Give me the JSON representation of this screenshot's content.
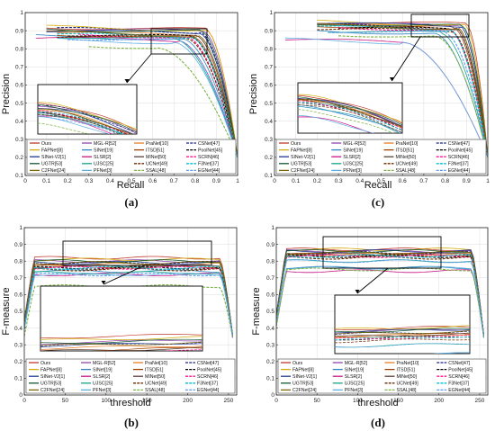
{
  "legend": [
    {
      "name": "Ours",
      "color": "#c0392b",
      "dash": "solid"
    },
    {
      "name": "MGL-R[52]",
      "color": "#8e44ad",
      "dash": "solid"
    },
    {
      "name": "PraNet[10]",
      "color": "#e67e22",
      "dash": "solid"
    },
    {
      "name": "CSNet[47]",
      "color": "#1a237e",
      "dash": "dash"
    },
    {
      "name": "FAPNet[8]",
      "color": "#d4ac0d",
      "dash": "solid"
    },
    {
      "name": "SINet[19]",
      "color": "#2e86c1",
      "dash": "solid"
    },
    {
      "name": "ITSD[51]",
      "color": "#a04000",
      "dash": "solid"
    },
    {
      "name": "PoolNet[45]",
      "color": "#000000",
      "dash": "dash"
    },
    {
      "name": "SINet-V2[1]",
      "color": "#1f3a93",
      "dash": "solid"
    },
    {
      "name": "SLSR[2]",
      "color": "#c71585",
      "dash": "solid"
    },
    {
      "name": "MINet[50]",
      "color": "#5d4037",
      "dash": "solid"
    },
    {
      "name": "SCRN[46]",
      "color": "#ff1493",
      "dash": "dash"
    },
    {
      "name": "UGTR[53]",
      "color": "#145a32",
      "dash": "solid"
    },
    {
      "name": "UJSC[25]",
      "color": "#17a589",
      "dash": "solid"
    },
    {
      "name": "UCNet[49]",
      "color": "#6e2c00",
      "dash": "dash"
    },
    {
      "name": "F3Net[37]",
      "color": "#00bcd4",
      "dash": "dash"
    },
    {
      "name": "C2FNet[24]",
      "color": "#7d6608",
      "dash": "solid"
    },
    {
      "name": "PFNet[3]",
      "color": "#5dade2",
      "dash": "solid"
    },
    {
      "name": "SSAL[48]",
      "color": "#7cb342",
      "dash": "dash"
    },
    {
      "name": "EGNet[44]",
      "color": "#5c9ded",
      "dash": "dash"
    }
  ],
  "chart_data": [
    {
      "type": "line",
      "panel_label": "(a)",
      "xlabel": "Recall",
      "ylabel": "Precision",
      "xlim": [
        0,
        1
      ],
      "ylim": [
        0.1,
        1
      ],
      "xticks": [
        0,
        0.1,
        0.2,
        0.3,
        0.4,
        0.5,
        0.6,
        0.7,
        0.8,
        0.9,
        1
      ],
      "yticks": [
        0.1,
        0.2,
        0.3,
        0.4,
        0.5,
        0.6,
        0.7,
        0.8,
        0.9,
        1
      ],
      "xtick_labels": [
        "0",
        "0.1",
        "0.2",
        "0.3",
        "0.4",
        "0.5",
        "0.6",
        "0.7",
        "0.8",
        "0.9",
        "1"
      ],
      "ytick_labels": [
        "0.1",
        "0.2",
        "0.3",
        "0.4",
        "0.5",
        "0.6",
        "0.7",
        "0.8",
        "0.9",
        "1"
      ],
      "grid": true,
      "legend_position": "bottom",
      "series_shape": "pr",
      "series_levels": [
        0.92,
        0.91,
        0.89,
        0.91,
        0.92,
        0.87,
        0.88,
        0.88,
        0.9,
        0.86,
        0.89,
        0.88,
        0.91,
        0.87,
        0.87,
        0.88,
        0.89,
        0.85,
        0.82,
        0.86
      ],
      "series_knees": [
        0.85,
        0.84,
        0.8,
        0.82,
        0.85,
        0.74,
        0.79,
        0.78,
        0.82,
        0.72,
        0.8,
        0.76,
        0.83,
        0.7,
        0.76,
        0.78,
        0.81,
        0.7,
        0.62,
        0.72
      ],
      "series_start": [
        0.1,
        0.1,
        0.15,
        0.15,
        0.1,
        0.05,
        0.15,
        0.2,
        0.1,
        0.05,
        0.15,
        0.25,
        0.1,
        0.15,
        0.15,
        0.15,
        0.1,
        0.15,
        0.3,
        0.2
      ]
    },
    {
      "type": "line",
      "panel_label": "(c)",
      "xlabel": "Recall",
      "ylabel": "Precision",
      "xlim": [
        0,
        1
      ],
      "ylim": [
        0.1,
        1
      ],
      "xticks": [
        0,
        0.1,
        0.2,
        0.3,
        0.4,
        0.5,
        0.6,
        0.7,
        0.8,
        0.9,
        1
      ],
      "yticks": [
        0.1,
        0.2,
        0.3,
        0.4,
        0.5,
        0.6,
        0.7,
        0.8,
        0.9,
        1
      ],
      "xtick_labels": [
        "0",
        "0.1",
        "0.2",
        "0.3",
        "0.4",
        "0.5",
        "0.6",
        "0.7",
        "0.8",
        "0.9",
        "1"
      ],
      "ytick_labels": [
        "0.1",
        "0.2",
        "0.3",
        "0.4",
        "0.5",
        "0.6",
        "0.7",
        "0.8",
        "0.9",
        "1"
      ],
      "grid": true,
      "legend_position": "bottom",
      "series_shape": "pr",
      "series_levels": [
        0.95,
        0.94,
        0.93,
        0.93,
        0.95,
        0.9,
        0.93,
        0.92,
        0.94,
        0.85,
        0.93,
        0.92,
        0.94,
        0.9,
        0.91,
        0.92,
        0.93,
        0.85,
        0.88,
        0.9
      ],
      "series_knees": [
        0.9,
        0.88,
        0.86,
        0.85,
        0.89,
        0.75,
        0.84,
        0.82,
        0.87,
        0.6,
        0.85,
        0.82,
        0.88,
        0.78,
        0.83,
        0.82,
        0.86,
        0.6,
        0.76,
        0.8
      ],
      "series_start": [
        0.2,
        0.2,
        0.2,
        0.25,
        0.2,
        0.2,
        0.2,
        0.3,
        0.2,
        0.05,
        0.2,
        0.3,
        0.2,
        0.25,
        0.2,
        0.2,
        0.2,
        0.05,
        0.3,
        0.25
      ]
    },
    {
      "type": "line",
      "panel_label": "(b)",
      "xlabel": "threshold",
      "ylabel": "F-measure",
      "xlim": [
        0,
        260
      ],
      "ylim": [
        0,
        1
      ],
      "xticks": [
        0,
        50,
        100,
        150,
        200,
        250
      ],
      "yticks": [
        0,
        0.1,
        0.2,
        0.3,
        0.4,
        0.5,
        0.6,
        0.7,
        0.8,
        0.9,
        1
      ],
      "xtick_labels": [
        "0",
        "50",
        "100",
        "150",
        "200",
        "250"
      ],
      "ytick_labels": [
        "0",
        "0.1",
        "0.2",
        "0.3",
        "0.4",
        "0.5",
        "0.6",
        "0.7",
        "0.8",
        "0.9",
        "1"
      ],
      "grid": true,
      "legend_position": "bottom",
      "series_shape": "fm",
      "series_levels": [
        0.82,
        0.8,
        0.78,
        0.79,
        0.81,
        0.74,
        0.77,
        0.76,
        0.79,
        0.72,
        0.77,
        0.76,
        0.8,
        0.73,
        0.75,
        0.76,
        0.79,
        0.72,
        0.65,
        0.72
      ]
    },
    {
      "type": "line",
      "panel_label": "(d)",
      "xlabel": "threshold",
      "ylabel": "F-measure",
      "xlim": [
        0,
        260
      ],
      "ylim": [
        0,
        1
      ],
      "xticks": [
        0,
        50,
        100,
        150,
        200,
        250
      ],
      "yticks": [
        0,
        0.1,
        0.2,
        0.3,
        0.4,
        0.5,
        0.6,
        0.7,
        0.8,
        0.9,
        1
      ],
      "xtick_labels": [
        "0",
        "50",
        "100",
        "150",
        "200",
        "250"
      ],
      "ytick_labels": [
        "0",
        "0.1",
        "0.2",
        "0.3",
        "0.4",
        "0.5",
        "0.6",
        "0.7",
        "0.8",
        "0.9",
        "1"
      ],
      "grid": true,
      "legend_position": "bottom",
      "series_shape": "fm",
      "series_levels": [
        0.87,
        0.86,
        0.84,
        0.85,
        0.87,
        0.76,
        0.84,
        0.83,
        0.86,
        0.74,
        0.84,
        0.83,
        0.86,
        0.8,
        0.82,
        0.83,
        0.85,
        0.76,
        0.75,
        0.8
      ]
    }
  ]
}
